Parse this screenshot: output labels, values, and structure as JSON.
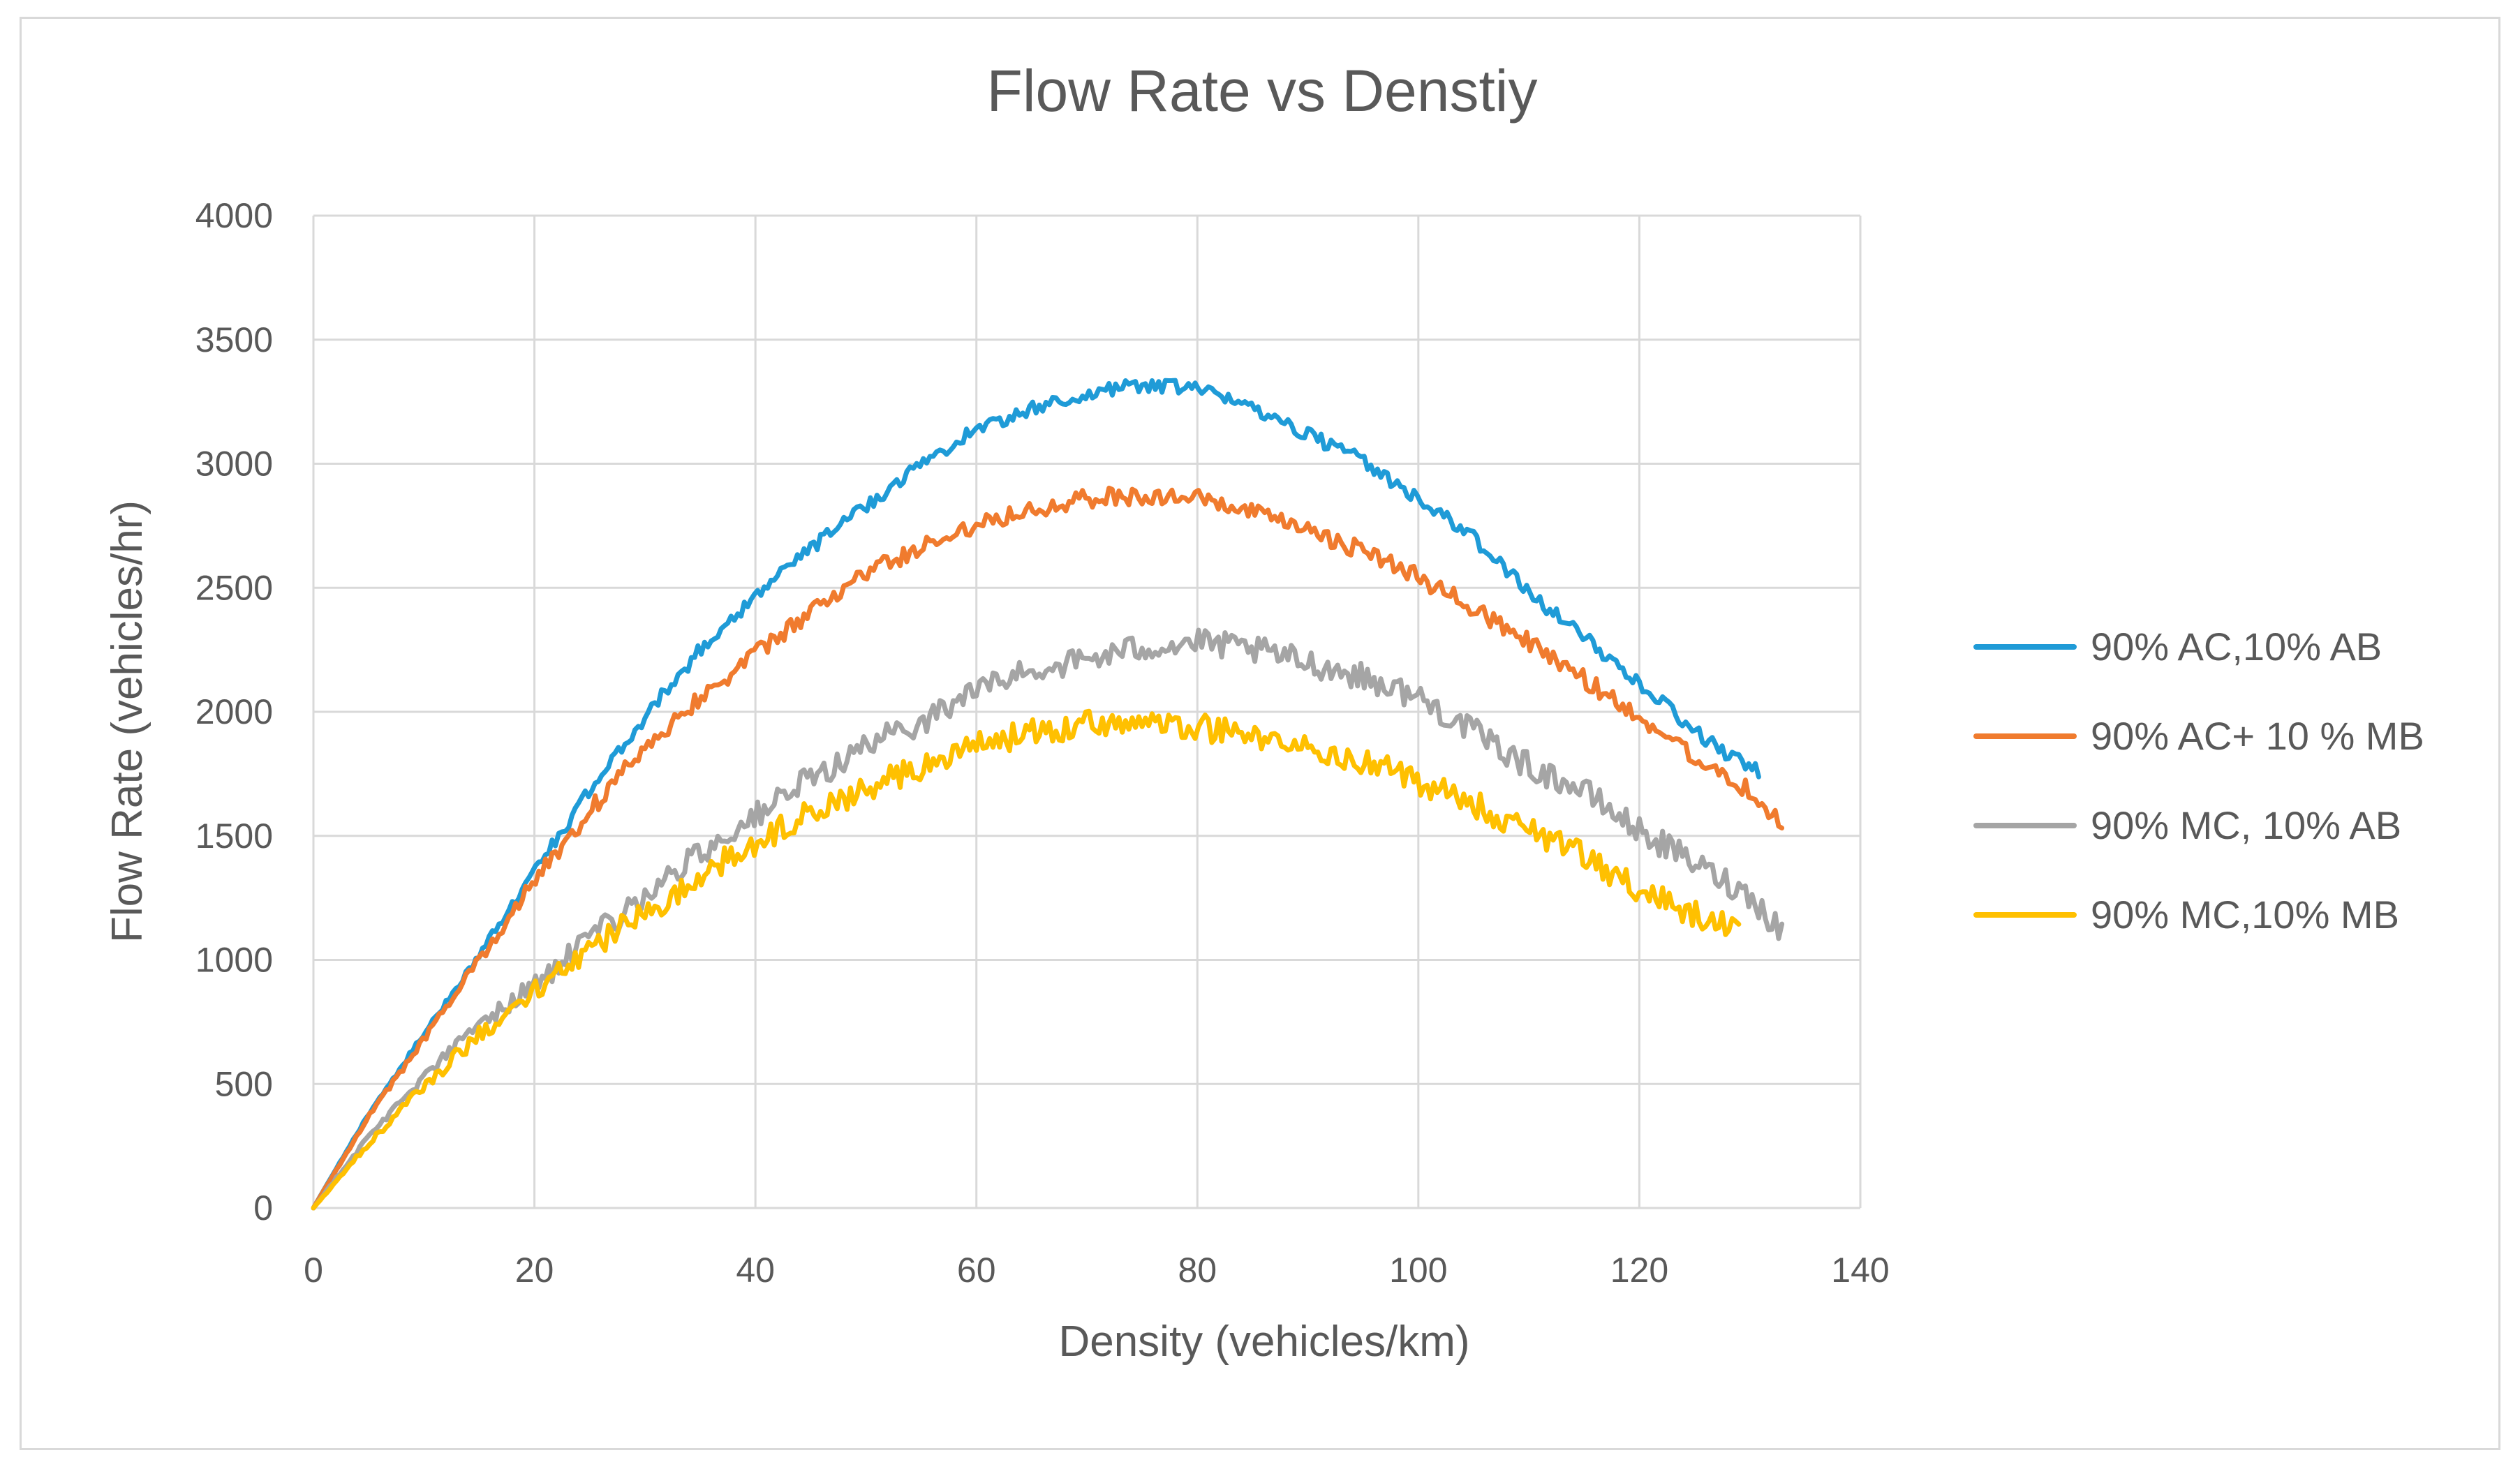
{
  "chart_data": {
    "type": "line",
    "title": "Flow Rate vs Denstiy",
    "xlabel": "Density (vehicles/km)",
    "ylabel": "Flow Rate  (vehicles/hr)",
    "xlim": [
      0,
      140
    ],
    "ylim": [
      0,
      4000
    ],
    "xticks": [
      0,
      20,
      40,
      60,
      80,
      100,
      120,
      140
    ],
    "yticks": [
      0,
      500,
      1000,
      1500,
      2000,
      2500,
      3000,
      3500,
      4000
    ],
    "grid": true,
    "legend_position": "right",
    "series": [
      {
        "name": "90% AC,10% AB",
        "color": "#1f9bd7",
        "x": [
          0,
          5,
          10,
          15,
          20,
          25,
          30,
          35,
          40,
          45,
          50,
          55,
          60,
          65,
          70,
          75,
          80,
          85,
          90,
          95,
          100,
          105,
          110,
          115,
          120,
          125,
          130,
          131
        ],
        "y": [
          0,
          380,
          700,
          1020,
          1360,
          1680,
          1980,
          2250,
          2470,
          2660,
          2830,
          3000,
          3140,
          3220,
          3280,
          3320,
          3300,
          3230,
          3120,
          3010,
          2860,
          2700,
          2480,
          2300,
          2120,
          1920,
          1770,
          1760
        ],
        "noise": 28
      },
      {
        "name": "90% AC+ 10 % MB",
        "color": "#f07b2e",
        "x": [
          0,
          5,
          10,
          15,
          20,
          25,
          30,
          35,
          40,
          45,
          50,
          55,
          60,
          65,
          70,
          75,
          80,
          85,
          90,
          95,
          100,
          105,
          110,
          115,
          120,
          125,
          130,
          133
        ],
        "y": [
          0,
          370,
          680,
          1000,
          1320,
          1600,
          1860,
          2060,
          2230,
          2400,
          2560,
          2660,
          2760,
          2820,
          2860,
          2870,
          2860,
          2800,
          2730,
          2650,
          2540,
          2420,
          2280,
          2130,
          1980,
          1820,
          1680,
          1540
        ],
        "noise": 38
      },
      {
        "name": "90% MC, 10% AB",
        "color": "#a5a5a5",
        "x": [
          0,
          5,
          10,
          15,
          20,
          25,
          30,
          35,
          40,
          45,
          50,
          55,
          60,
          65,
          70,
          75,
          80,
          85,
          90,
          95,
          100,
          105,
          110,
          115,
          120,
          125,
          130,
          133
        ],
        "y": [
          0,
          290,
          530,
          740,
          900,
          1080,
          1260,
          1430,
          1580,
          1730,
          1860,
          1960,
          2090,
          2170,
          2210,
          2260,
          2280,
          2250,
          2200,
          2140,
          2060,
          1920,
          1780,
          1680,
          1520,
          1390,
          1260,
          1110
        ],
        "noise": 55
      },
      {
        "name": "90% MC,10% MB",
        "color": "#ffc000",
        "x": [
          0,
          5,
          10,
          15,
          20,
          25,
          30,
          35,
          40,
          45,
          50,
          55,
          60,
          65,
          70,
          75,
          80,
          85,
          90,
          95,
          100,
          105,
          110,
          115,
          120,
          125,
          129
        ],
        "y": [
          0,
          260,
          490,
          700,
          870,
          1040,
          1190,
          1340,
          1470,
          1590,
          1690,
          1780,
          1860,
          1920,
          1950,
          1960,
          1940,
          1900,
          1850,
          1800,
          1720,
          1630,
          1520,
          1420,
          1280,
          1180,
          1110
        ],
        "noise": 55
      }
    ]
  }
}
